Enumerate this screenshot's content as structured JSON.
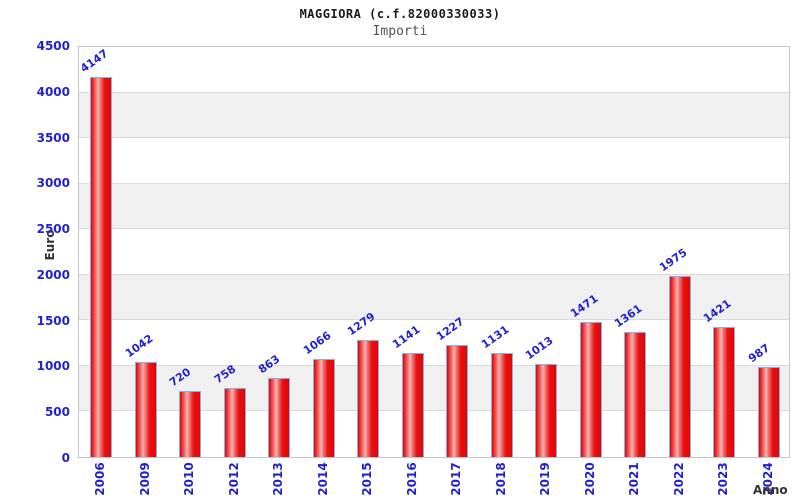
{
  "chart_data": {
    "type": "bar",
    "title": "MAGGIORA (c.f.82000330033)",
    "subtitle": "Importi",
    "xlabel": "Anno",
    "ylabel": "Euro",
    "categories": [
      "2006",
      "2009",
      "2010",
      "2012",
      "2013",
      "2014",
      "2015",
      "2016",
      "2017",
      "2018",
      "2019",
      "2020",
      "2021",
      "2022",
      "2023",
      "2024"
    ],
    "values": [
      4147,
      1042,
      720,
      758,
      863,
      1066,
      1279,
      1141,
      1227,
      1131,
      1013,
      1471,
      1361,
      1975,
      1421,
      987
    ],
    "ylim": [
      0,
      4500
    ],
    "ytick_step": 500,
    "grid": true,
    "legend": "none",
    "colors": {
      "bar_fill": "#e81414",
      "bar_border": "#7fb2e5",
      "label_blue": "#2222cc",
      "axis_label_gray": "#333333",
      "band_gray": "#f0f0f0",
      "grid_line": "#dadada",
      "plot_border": "#c6c6c6"
    }
  }
}
